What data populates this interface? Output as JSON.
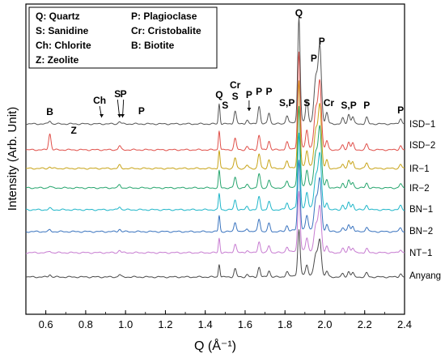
{
  "chart_data": {
    "type": "line",
    "xlabel": "Q (Å⁻¹)",
    "ylabel": "Intensity (Arb. Unit)",
    "xlim": [
      0.5,
      2.4
    ],
    "x_ticks": [
      "0.6",
      "0.8",
      "1.0",
      "1.2",
      "1.4",
      "1.6",
      "1.8",
      "2.0",
      "2.2",
      "2.4"
    ],
    "grid": false,
    "legend": {
      "placement": "top-left",
      "entries": [
        "Q: Quartz",
        "P: Plagioclase",
        "S: Sanidine",
        "Cr: Cristobalite",
        "Ch: Chlorite",
        "B: Biotite",
        "Z: Zeolite"
      ]
    },
    "series": [
      {
        "name": "ISD−1",
        "color": "#555555",
        "peaks": [
          [
            0.62,
            4
          ],
          [
            0.97,
            3
          ],
          [
            1.47,
            25
          ],
          [
            1.55,
            16
          ],
          [
            1.61,
            5
          ],
          [
            1.67,
            22
          ],
          [
            1.72,
            14
          ],
          [
            1.81,
            10
          ],
          [
            1.87,
            130
          ],
          [
            1.91,
            26
          ],
          [
            1.955,
            55
          ],
          [
            1.975,
            92
          ],
          [
            2.01,
            14
          ],
          [
            2.09,
            7
          ],
          [
            2.12,
            12
          ],
          [
            2.14,
            9
          ],
          [
            2.21,
            8
          ],
          [
            2.38,
            7
          ]
        ]
      },
      {
        "name": "ISD−2",
        "color": "#e0504a",
        "peaks": [
          [
            0.62,
            20
          ],
          [
            0.97,
            5
          ],
          [
            1.47,
            24
          ],
          [
            1.55,
            14
          ],
          [
            1.61,
            4
          ],
          [
            1.67,
            18
          ],
          [
            1.72,
            11
          ],
          [
            1.81,
            9
          ],
          [
            1.87,
            118
          ],
          [
            1.91,
            22
          ],
          [
            1.955,
            48
          ],
          [
            1.975,
            82
          ],
          [
            2.01,
            11
          ],
          [
            2.09,
            6
          ],
          [
            2.12,
            10
          ],
          [
            2.14,
            8
          ],
          [
            2.21,
            7
          ],
          [
            2.38,
            5
          ]
        ]
      },
      {
        "name": "IR−1",
        "color": "#c8a418",
        "peaks": [
          [
            0.62,
            2
          ],
          [
            0.97,
            4
          ],
          [
            1.47,
            22
          ],
          [
            1.55,
            13
          ],
          [
            1.61,
            4
          ],
          [
            1.67,
            18
          ],
          [
            1.72,
            11
          ],
          [
            1.81,
            8
          ],
          [
            1.87,
            105
          ],
          [
            1.91,
            20
          ],
          [
            1.955,
            45
          ],
          [
            1.975,
            76
          ],
          [
            2.01,
            10
          ],
          [
            2.09,
            6
          ],
          [
            2.12,
            10
          ],
          [
            2.14,
            8
          ],
          [
            2.21,
            7
          ],
          [
            2.38,
            5
          ]
        ]
      },
      {
        "name": "IR−2",
        "color": "#27a56e",
        "peaks": [
          [
            0.62,
            2
          ],
          [
            0.97,
            4
          ],
          [
            1.47,
            21
          ],
          [
            1.55,
            13
          ],
          [
            1.61,
            4
          ],
          [
            1.67,
            17
          ],
          [
            1.72,
            10
          ],
          [
            1.81,
            8
          ],
          [
            1.87,
            98
          ],
          [
            1.91,
            19
          ],
          [
            1.955,
            42
          ],
          [
            1.975,
            72
          ],
          [
            2.01,
            10
          ],
          [
            2.09,
            6
          ],
          [
            2.12,
            9
          ],
          [
            2.14,
            7
          ],
          [
            2.21,
            6
          ],
          [
            2.38,
            5
          ]
        ]
      },
      {
        "name": "BN−1",
        "color": "#1fb6c9",
        "peaks": [
          [
            0.62,
            2
          ],
          [
            0.97,
            4
          ],
          [
            1.47,
            20
          ],
          [
            1.55,
            12
          ],
          [
            1.61,
            4
          ],
          [
            1.67,
            16
          ],
          [
            1.72,
            10
          ],
          [
            1.81,
            8
          ],
          [
            1.87,
            92
          ],
          [
            1.91,
            18
          ],
          [
            1.955,
            40
          ],
          [
            1.975,
            66
          ],
          [
            2.01,
            9
          ],
          [
            2.09,
            6
          ],
          [
            2.12,
            9
          ],
          [
            2.14,
            7
          ],
          [
            2.21,
            6
          ],
          [
            2.38,
            5
          ]
        ]
      },
      {
        "name": "BN−2",
        "color": "#3a74bf",
        "peaks": [
          [
            0.62,
            2
          ],
          [
            0.97,
            3
          ],
          [
            1.47,
            20
          ],
          [
            1.55,
            12
          ],
          [
            1.61,
            4
          ],
          [
            1.67,
            16
          ],
          [
            1.72,
            10
          ],
          [
            1.81,
            7
          ],
          [
            1.87,
            86
          ],
          [
            1.91,
            17
          ],
          [
            1.955,
            38
          ],
          [
            1.975,
            62
          ],
          [
            2.01,
            9
          ],
          [
            2.09,
            5
          ],
          [
            2.12,
            9
          ],
          [
            2.14,
            7
          ],
          [
            2.21,
            6
          ],
          [
            2.38,
            5
          ]
        ]
      },
      {
        "name": "NT−1",
        "color": "#c77cd1",
        "peaks": [
          [
            0.62,
            2
          ],
          [
            0.97,
            3
          ],
          [
            1.47,
            18
          ],
          [
            1.55,
            11
          ],
          [
            1.61,
            3
          ],
          [
            1.67,
            14
          ],
          [
            1.72,
            9
          ],
          [
            1.81,
            7
          ],
          [
            1.87,
            74
          ],
          [
            1.91,
            15
          ],
          [
            1.955,
            32
          ],
          [
            1.975,
            54
          ],
          [
            2.01,
            8
          ],
          [
            2.09,
            5
          ],
          [
            2.12,
            8
          ],
          [
            2.14,
            6
          ],
          [
            2.21,
            5
          ],
          [
            2.38,
            4
          ]
        ]
      },
      {
        "name": "Anyang",
        "color": "#4a4a4a",
        "peaks": [
          [
            0.62,
            3
          ],
          [
            0.97,
            3
          ],
          [
            1.47,
            16
          ],
          [
            1.55,
            10
          ],
          [
            1.61,
            3
          ],
          [
            1.67,
            12
          ],
          [
            1.72,
            8
          ],
          [
            1.81,
            6
          ],
          [
            1.87,
            56
          ],
          [
            1.91,
            12
          ],
          [
            1.955,
            26
          ],
          [
            1.975,
            44
          ],
          [
            2.01,
            7
          ],
          [
            2.09,
            4
          ],
          [
            2.12,
            7
          ],
          [
            2.14,
            5
          ],
          [
            2.21,
            5
          ],
          [
            2.38,
            4
          ]
        ]
      }
    ],
    "annotations": [
      {
        "text": "B",
        "x": 0.62
      },
      {
        "text": "Z",
        "x": 0.74
      },
      {
        "text": "Ch",
        "x": 0.87,
        "arrow": true
      },
      {
        "text": "S",
        "x": 0.96,
        "arrow": true
      },
      {
        "text": "P",
        "x": 0.99,
        "arrow": true
      },
      {
        "text": "P",
        "x": 1.08
      },
      {
        "text": "Q",
        "x": 1.47
      },
      {
        "text": "S",
        "x": 1.5
      },
      {
        "text": "Cr",
        "x": 1.55
      },
      {
        "text": "S",
        "x": 1.55
      },
      {
        "text": "P",
        "x": 1.62,
        "arrow": true
      },
      {
        "text": "P",
        "x": 1.67
      },
      {
        "text": "P",
        "x": 1.72
      },
      {
        "text": "S,P",
        "x": 1.81
      },
      {
        "text": "S",
        "x": 1.91
      },
      {
        "text": "Q",
        "x": 1.87
      },
      {
        "text": "P",
        "x": 1.945
      },
      {
        "text": "P",
        "x": 1.985
      },
      {
        "text": "Cr",
        "x": 2.02
      },
      {
        "text": "S,P",
        "x": 2.12
      },
      {
        "text": "P",
        "x": 2.21
      },
      {
        "text": "P",
        "x": 2.38
      }
    ]
  }
}
